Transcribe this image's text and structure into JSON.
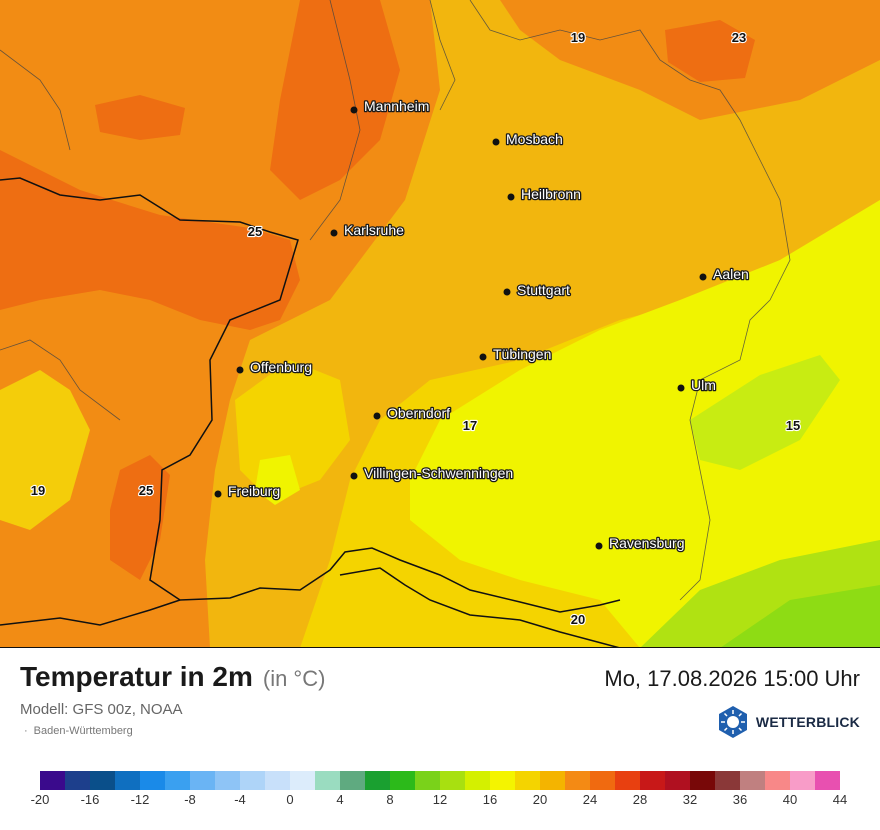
{
  "map": {
    "cities": [
      {
        "name": "Mannheim"
      },
      {
        "name": "Mosbach"
      },
      {
        "name": "Heilbronn"
      },
      {
        "name": "Karlsruhe"
      },
      {
        "name": "Aalen"
      },
      {
        "name": "Stuttgart"
      },
      {
        "name": "Tübingen"
      },
      {
        "name": "Offenburg"
      },
      {
        "name": "Ulm"
      },
      {
        "name": "Oberndorf"
      },
      {
        "name": "Villingen-Schwenningen"
      },
      {
        "name": "Freiburg"
      },
      {
        "name": "Ravensburg"
      }
    ],
    "contour_labels": [
      "19",
      "23",
      "25",
      "17",
      "15",
      "19",
      "25",
      "20"
    ]
  },
  "legend": {
    "title": "Temperatur in 2m",
    "unit": "(in °C)",
    "model": "Modell: GFS 00z, NOAA",
    "region": "Baden-Württemberg",
    "datetime": "Mo, 17.08.2026 15:00 Uhr",
    "brand": "WETTERBLICK",
    "scale_colors": [
      "#3a0a8c",
      "#1d3f8c",
      "#0a4f8a",
      "#0f6fc0",
      "#1a8ae8",
      "#3aa0f0",
      "#6ab4f4",
      "#8ec4f6",
      "#aed4f8",
      "#c8e0fa",
      "#dcecfb",
      "#9adcc0",
      "#5faa80",
      "#1aa030",
      "#2cba1a",
      "#7ad21a",
      "#a8e010",
      "#d4f000",
      "#f4f400",
      "#f4d400",
      "#f4b400",
      "#f48a14",
      "#f06a10",
      "#e84010",
      "#c81818",
      "#b01020",
      "#780808",
      "#8a3838",
      "#c08080",
      "#f88888",
      "#f89cc8",
      "#e850b0"
    ],
    "scale_labels": [
      "-20",
      "-16",
      "-12",
      "-8",
      "-4",
      "0",
      "4",
      "8",
      "12",
      "16",
      "20",
      "24",
      "28",
      "32",
      "36",
      "40",
      "44"
    ]
  }
}
